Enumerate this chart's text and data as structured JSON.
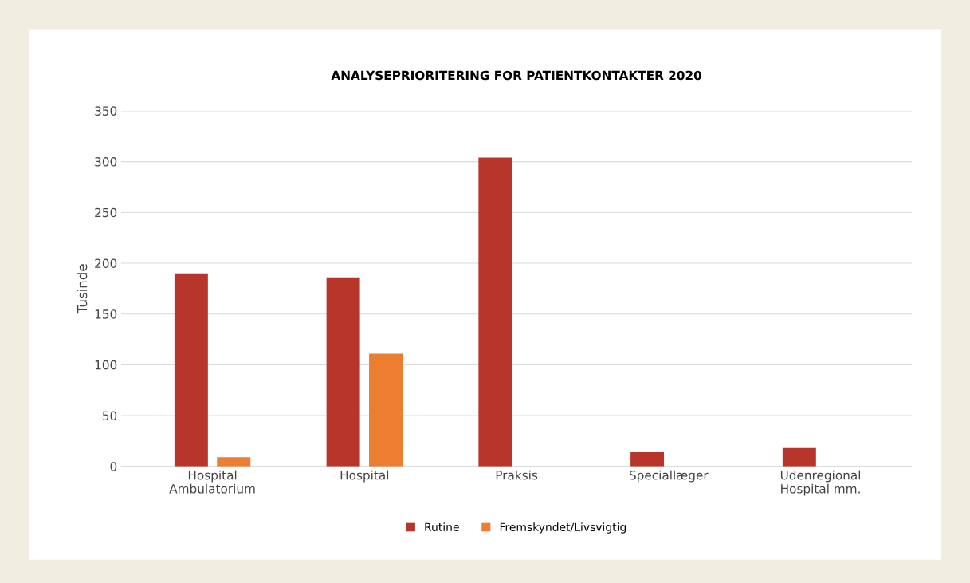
{
  "chart_data": {
    "type": "bar",
    "title": "ANALYSEPRIORITERING FOR PATIENTKONTAKTER 2020",
    "ylabel": "Tusinde",
    "categories": [
      "Hospital\nAmbulatorium",
      "Hospital",
      "Praksis",
      "Speciallæger",
      "Udenregional\nHospital mm."
    ],
    "series": [
      {
        "name": "Rutine",
        "color": "#b8352b",
        "values": [
          190,
          186,
          304,
          14,
          18
        ]
      },
      {
        "name": "Fremskyndet/Livsvigtig",
        "color": "#ed7d31",
        "values": [
          9,
          111,
          null,
          null,
          null
        ]
      }
    ],
    "ylim": [
      0,
      350
    ],
    "yticks": [
      0,
      50,
      100,
      150,
      200,
      250,
      300,
      350
    ],
    "grid": "y",
    "legend": "bottom"
  }
}
